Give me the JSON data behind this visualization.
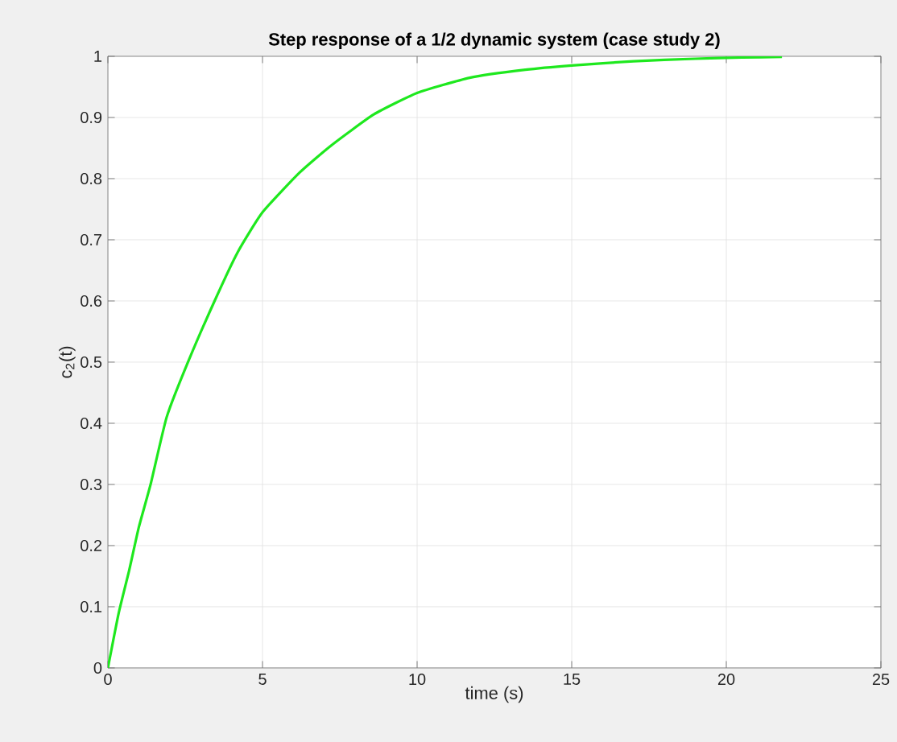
{
  "chart_data": {
    "type": "line",
    "title": "Step response of a 1/2 dynamic system (case study 2)",
    "xlabel": "time (s)",
    "ylabel": "c$_{2}$(t)",
    "x": [
      0,
      0.35,
      0.69,
      1.0,
      1.38,
      1.9,
      2.59,
      3.45,
      4.2,
      5,
      6.2,
      7.24,
      8.6,
      10,
      11.7,
      13.5,
      15,
      17,
      19,
      20.5,
      21.8
    ],
    "series": [
      {
        "color": "#1ee81e",
        "values": [
          0,
          0.09,
          0.16,
          0.23,
          0.3,
          0.41,
          0.5,
          0.6,
          0.68,
          0.745,
          0.81,
          0.855,
          0.905,
          0.94,
          0.965,
          0.978,
          0.985,
          0.992,
          0.996,
          0.998,
          0.999
        ]
      }
    ],
    "xlim": [
      0,
      25
    ],
    "ylim": [
      0,
      1
    ],
    "xticks": [
      0,
      5,
      10,
      15,
      20,
      25
    ],
    "yticks": [
      0,
      0.1,
      0.2,
      0.3,
      0.4,
      0.5,
      0.6,
      0.7,
      0.8,
      0.9,
      1
    ],
    "grid": true
  }
}
